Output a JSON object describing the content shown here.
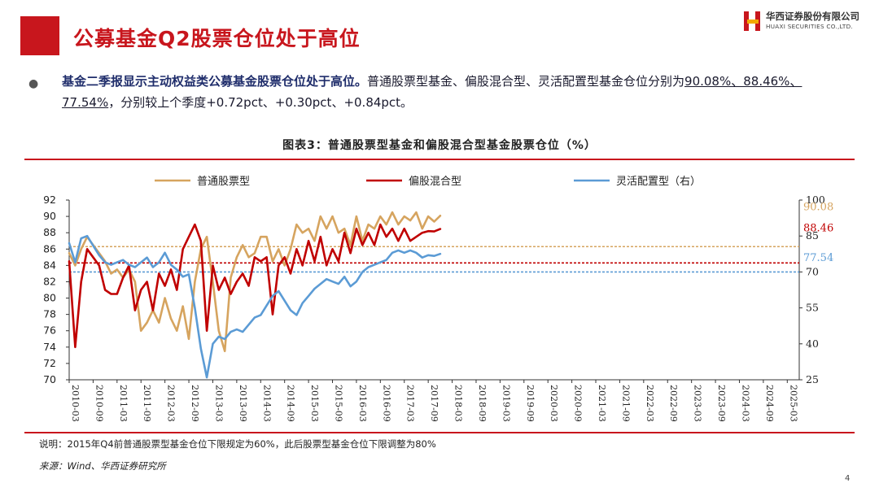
{
  "header": {
    "title": "公募基金Q2股票仓位处于高位",
    "logo_cn": "华西证券股份有限公司",
    "logo_en": "HUAXI SECURITIES CO.,LTD."
  },
  "summary": {
    "bold": "基金二季报显示主动权益类公募基金股票仓位处于高位。",
    "text1": "普通股票型基金、偏股混合型、灵活配置型基金仓位分别为",
    "values_underlined": "90.08%、88.46%、77.54%",
    "text2": "，分别较上个季度+0.72pct、+0.30pct、+0.84pct。"
  },
  "figure_title": "图表3：普通股票型基金和偏股混合型基金股票仓位（%）",
  "note": "说明：2015年Q4前普通股票型基金仓位下限规定为60%，此后股票型基金仓位下限调整为80%",
  "source": "来源：Wind、华西证券研究所",
  "page_number": "4",
  "colors": {
    "brand": "#c8161d",
    "stock": "#d6a45f",
    "mixed": "#c00000",
    "flex": "#5b9bd5"
  },
  "chart_data": {
    "type": "line",
    "title": "图表3：普通股票型基金和偏股混合型基金股票仓位（%）",
    "categories": [
      "2010-03",
      "2010-09",
      "2011-03",
      "2011-09",
      "2012-03",
      "2012-09",
      "2013-03",
      "2013-09",
      "2014-03",
      "2014-09",
      "2015-03",
      "2015-09",
      "2016-03",
      "2016-09",
      "2017-03",
      "2017-09",
      "2018-03",
      "2018-09",
      "2019-03",
      "2019-09",
      "2020-03",
      "2020-09",
      "2021-03",
      "2021-09",
      "2022-03",
      "2022-09",
      "2023-03",
      "2023-09",
      "2024-03",
      "2024-09",
      "2025-03"
    ],
    "x_range": [
      "2010-03",
      "2025-06"
    ],
    "left_axis": {
      "ylim": [
        70,
        92
      ],
      "ticks": [
        70,
        72,
        74,
        76,
        78,
        80,
        82,
        84,
        86,
        88,
        90,
        92
      ]
    },
    "right_axis": {
      "ylim": [
        25,
        100
      ],
      "ticks": [
        25,
        40,
        55,
        70,
        85,
        100
      ]
    },
    "series": [
      {
        "name": "普通股票型",
        "axis": "left",
        "points": [
          [
            0,
            85.5
          ],
          [
            0.25,
            84.0
          ],
          [
            0.5,
            86.0
          ],
          [
            0.75,
            87.5
          ],
          [
            1,
            86.5
          ],
          [
            1.25,
            85.5
          ],
          [
            1.5,
            84.5
          ],
          [
            1.75,
            83.0
          ],
          [
            2,
            83.5
          ],
          [
            2.25,
            82.5
          ],
          [
            2.5,
            83.5
          ],
          [
            2.75,
            82.0
          ],
          [
            3,
            76.0
          ],
          [
            3.25,
            77.0
          ],
          [
            3.5,
            78.5
          ],
          [
            3.75,
            77.0
          ],
          [
            4,
            80.0
          ],
          [
            4.25,
            77.5
          ],
          [
            4.5,
            76.0
          ],
          [
            4.75,
            79.0
          ],
          [
            5,
            75.0
          ],
          [
            5.25,
            82.0
          ],
          [
            5.5,
            86.0
          ],
          [
            5.75,
            87.5
          ],
          [
            6,
            82.0
          ],
          [
            6.25,
            76.0
          ],
          [
            6.5,
            73.5
          ],
          [
            6.75,
            82.5
          ],
          [
            7,
            85.0
          ],
          [
            7.25,
            86.5
          ],
          [
            7.5,
            85.0
          ],
          [
            7.75,
            85.5
          ],
          [
            8,
            87.5
          ],
          [
            8.25,
            87.5
          ],
          [
            8.5,
            84.5
          ],
          [
            8.75,
            86.0
          ],
          [
            9,
            84.0
          ],
          [
            9.25,
            86.0
          ],
          [
            9.5,
            89.0
          ],
          [
            9.75,
            88.0
          ],
          [
            10,
            88.5
          ],
          [
            10.25,
            87.0
          ],
          [
            10.5,
            90.0
          ],
          [
            10.75,
            88.5
          ],
          [
            11,
            90.0
          ],
          [
            11.25,
            88.0
          ],
          [
            11.5,
            88.5
          ],
          [
            11.75,
            86.5
          ],
          [
            12,
            90.0
          ],
          [
            12.25,
            87.0
          ],
          [
            12.5,
            89.0
          ],
          [
            12.75,
            88.5
          ],
          [
            13,
            90.0
          ],
          [
            13.25,
            89.0
          ],
          [
            13.5,
            90.5
          ],
          [
            13.75,
            89.0
          ],
          [
            14,
            90.0
          ],
          [
            14.25,
            89.5
          ],
          [
            14.5,
            90.5
          ],
          [
            14.75,
            88.5
          ],
          [
            15,
            90.0
          ],
          [
            15.25,
            89.36
          ],
          [
            15.5,
            90.08
          ]
        ]
      },
      {
        "name": "偏股混合型",
        "axis": "left",
        "points": [
          [
            0,
            84.5
          ],
          [
            0.25,
            74.0
          ],
          [
            0.5,
            82.0
          ],
          [
            0.75,
            86.0
          ],
          [
            1,
            85.0
          ],
          [
            1.25,
            84.0
          ],
          [
            1.5,
            81.0
          ],
          [
            1.75,
            80.5
          ],
          [
            2,
            80.5
          ],
          [
            2.25,
            82.5
          ],
          [
            2.5,
            84.0
          ],
          [
            2.75,
            78.5
          ],
          [
            3,
            81.0
          ],
          [
            3.25,
            82.0
          ],
          [
            3.5,
            78.5
          ],
          [
            3.75,
            83.0
          ],
          [
            4,
            81.5
          ],
          [
            4.25,
            83.5
          ],
          [
            4.5,
            81.0
          ],
          [
            4.75,
            86.0
          ],
          [
            5,
            87.5
          ],
          [
            5.25,
            89.0
          ],
          [
            5.5,
            87.0
          ],
          [
            5.75,
            76.0
          ],
          [
            6,
            84.0
          ],
          [
            6.25,
            81.0
          ],
          [
            6.5,
            82.5
          ],
          [
            6.75,
            80.5
          ],
          [
            7,
            82.0
          ],
          [
            7.25,
            83.0
          ],
          [
            7.5,
            81.5
          ],
          [
            7.75,
            85.0
          ],
          [
            8,
            84.5
          ],
          [
            8.25,
            85.0
          ],
          [
            8.5,
            78.0
          ],
          [
            8.75,
            84.0
          ],
          [
            9,
            85.0
          ],
          [
            9.25,
            83.0
          ],
          [
            9.5,
            86.0
          ],
          [
            9.75,
            84.0
          ],
          [
            10,
            87.0
          ],
          [
            10.25,
            84.5
          ],
          [
            10.5,
            87.5
          ],
          [
            10.75,
            84.0
          ],
          [
            11,
            86.0
          ],
          [
            11.25,
            84.5
          ],
          [
            11.5,
            88.0
          ],
          [
            11.75,
            85.5
          ],
          [
            12,
            88.5
          ],
          [
            12.25,
            86.5
          ],
          [
            12.5,
            88.0
          ],
          [
            12.75,
            86.5
          ],
          [
            13,
            89.0
          ],
          [
            13.25,
            87.5
          ],
          [
            13.5,
            88.5
          ],
          [
            13.75,
            87.0
          ],
          [
            14,
            88.5
          ],
          [
            14.25,
            87.0
          ],
          [
            14.5,
            87.5
          ],
          [
            14.75,
            88.0
          ],
          [
            15,
            88.2
          ],
          [
            15.25,
            88.16
          ],
          [
            15.5,
            88.46
          ]
        ]
      },
      {
        "name": "灵活配置型（右）",
        "axis": "right",
        "points": [
          [
            0,
            82.0
          ],
          [
            0.25,
            74.0
          ],
          [
            0.5,
            84.0
          ],
          [
            0.75,
            85.0
          ],
          [
            1,
            81.0
          ],
          [
            1.25,
            77.0
          ],
          [
            1.5,
            74.0
          ],
          [
            1.75,
            73.0
          ],
          [
            2,
            74.0
          ],
          [
            2.25,
            75.0
          ],
          [
            2.5,
            73.0
          ],
          [
            2.75,
            72.0
          ],
          [
            3,
            74.0
          ],
          [
            3.25,
            76.0
          ],
          [
            3.5,
            72.0
          ],
          [
            3.75,
            74.0
          ],
          [
            4,
            78.0
          ],
          [
            4.25,
            73.0
          ],
          [
            4.5,
            71.0
          ],
          [
            4.75,
            68.0
          ],
          [
            5,
            69.0
          ],
          [
            5.25,
            55.0
          ],
          [
            5.5,
            38.0
          ],
          [
            5.75,
            26.0
          ],
          [
            6,
            40.0
          ],
          [
            6.25,
            43.0
          ],
          [
            6.5,
            42.0
          ],
          [
            6.75,
            45.0
          ],
          [
            7,
            46.0
          ],
          [
            7.25,
            45.0
          ],
          [
            7.5,
            48.0
          ],
          [
            7.75,
            51.0
          ],
          [
            8,
            52.0
          ],
          [
            8.25,
            56.0
          ],
          [
            8.5,
            60.0
          ],
          [
            8.75,
            62.0
          ],
          [
            9,
            58.0
          ],
          [
            9.25,
            54.0
          ],
          [
            9.5,
            52.0
          ],
          [
            9.75,
            57.0
          ],
          [
            10,
            60.0
          ],
          [
            10.25,
            63.0
          ],
          [
            10.5,
            65.0
          ],
          [
            10.75,
            67.0
          ],
          [
            11,
            66.0
          ],
          [
            11.25,
            65.0
          ],
          [
            11.5,
            68.0
          ],
          [
            11.75,
            64.0
          ],
          [
            12,
            66.0
          ],
          [
            12.25,
            70.0
          ],
          [
            12.5,
            72.0
          ],
          [
            12.75,
            73.0
          ],
          [
            13,
            74.0
          ],
          [
            13.25,
            75.0
          ],
          [
            13.5,
            78.0
          ],
          [
            13.75,
            79.0
          ],
          [
            14,
            78.0
          ],
          [
            14.25,
            79.0
          ],
          [
            14.5,
            78.0
          ],
          [
            14.75,
            76.0
          ],
          [
            15,
            77.0
          ],
          [
            15.25,
            76.7
          ],
          [
            15.5,
            77.54
          ]
        ]
      }
    ],
    "reference_lines": [
      {
        "series": "普通股票型",
        "axis": "left",
        "value": 86.3
      },
      {
        "series": "偏股混合型",
        "axis": "left",
        "value": 84.3
      },
      {
        "series": "灵活配置型（右）",
        "axis": "right",
        "value": 70.0
      }
    ],
    "end_labels": [
      {
        "text": "90.08",
        "series": "普通股票型"
      },
      {
        "text": "88.46",
        "series": "偏股混合型"
      },
      {
        "text": "77.54",
        "series": "灵活配置型（右）"
      }
    ]
  }
}
